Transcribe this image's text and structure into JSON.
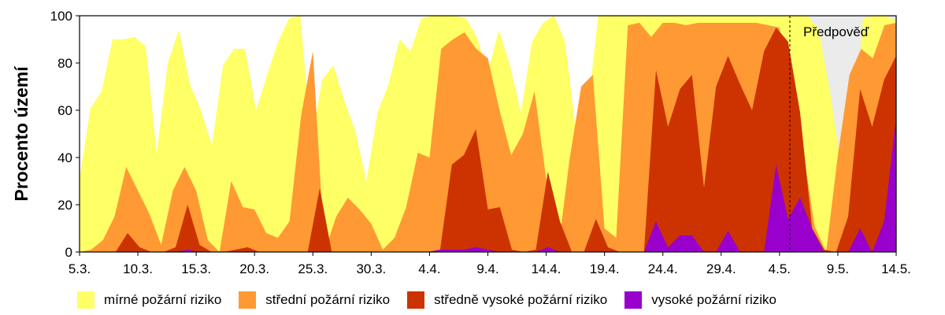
{
  "chart_data": {
    "type": "area",
    "xlabel": "",
    "ylabel": "Procento území",
    "ylim": [
      0,
      100
    ],
    "yticks": [
      "0",
      "20",
      "40",
      "60",
      "80",
      "100"
    ],
    "xticks": [
      "5.3.",
      "10.3.",
      "15.3.",
      "20.3.",
      "25.3.",
      "30.3.",
      "4.4.",
      "9.4.",
      "14.4.",
      "19.4.",
      "24.4.",
      "29.4.",
      "4.5.",
      "9.5.",
      "14.5."
    ],
    "forecast_label": "Předpověď",
    "forecast_range": [
      "4.5.",
      "13.5."
    ],
    "series": [
      {
        "name": "mírné požární riziko",
        "color": "#ffff66",
        "values": [
          31,
          61,
          68,
          90,
          90,
          91,
          87,
          42,
          80,
          94,
          71,
          60,
          45,
          79,
          86,
          86,
          60,
          75,
          89,
          99,
          100,
          47,
          73,
          79,
          64,
          51,
          30,
          59,
          71,
          90,
          85,
          99,
          100,
          100,
          100,
          99,
          91,
          76,
          94,
          79,
          59,
          89,
          97,
          100,
          89,
          50,
          58,
          100,
          100,
          100,
          100,
          100,
          100,
          100,
          100,
          100,
          100,
          100,
          100,
          100,
          100,
          100,
          100,
          100,
          100,
          100,
          100,
          94,
          68,
          37,
          45,
          99,
          100,
          100,
          98
        ]
      },
      {
        "name": "střední požární riziko",
        "color": "#ff9933",
        "values": [
          0,
          1,
          5,
          15,
          36,
          26,
          16,
          3,
          26,
          36,
          26,
          5,
          0,
          30,
          19,
          18,
          8,
          6,
          13,
          58,
          85,
          0,
          15,
          23,
          18,
          12,
          1,
          6,
          19,
          42,
          40,
          86,
          90,
          93,
          86,
          82,
          60,
          41,
          50,
          68,
          31,
          0,
          39,
          70,
          75,
          10,
          6,
          96,
          97,
          91,
          97,
          97,
          96,
          97,
          97,
          97,
          97,
          97,
          97,
          96,
          95,
          60,
          44,
          11,
          0,
          41,
          75,
          86,
          82,
          96,
          97
        ]
      },
      {
        "name": "středně vysoké požární riziko",
        "color": "#cc3300",
        "values": [
          0,
          0,
          0,
          0,
          8,
          2,
          0,
          0,
          2,
          20,
          3,
          0,
          0,
          1,
          2,
          0,
          0,
          0,
          0,
          0,
          27,
          0,
          0,
          0,
          0,
          0,
          0,
          0,
          0,
          0,
          0,
          37,
          41,
          52,
          18,
          19,
          1,
          0,
          1,
          34,
          13,
          0,
          0,
          14,
          2,
          0,
          0,
          0,
          77,
          53,
          69,
          75,
          27,
          70,
          83,
          71,
          60,
          85,
          95,
          89,
          59,
          10,
          1,
          0,
          15,
          69,
          53,
          73,
          83
        ]
      },
      {
        "name": "vysoké požární riziko",
        "color": "#9900cc",
        "values": [
          0,
          0,
          0,
          0,
          0,
          0,
          0,
          0,
          0,
          1,
          0,
          0,
          0,
          0,
          0,
          0,
          0,
          0,
          0,
          0,
          0,
          0,
          0,
          0,
          0,
          0,
          0,
          0,
          0,
          0,
          1,
          1,
          1,
          2,
          1,
          0,
          0,
          0,
          0,
          2,
          0,
          0,
          0,
          0,
          0,
          0,
          0,
          0,
          13,
          2,
          7,
          7,
          0,
          0,
          9,
          0,
          0,
          0,
          37,
          14,
          23,
          10,
          0,
          0,
          0,
          10,
          0,
          13,
          57
        ]
      }
    ]
  }
}
